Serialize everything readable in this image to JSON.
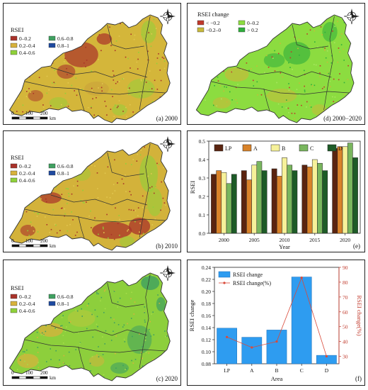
{
  "colors": {
    "c0": "#a9322a",
    "c1": "#d8b23c",
    "c2": "#8fd13a",
    "c3": "#3fa060",
    "c4": "#1e4aa0",
    "ch_neg_big": "#c0392b",
    "ch_neg": "#c8b93a",
    "ch_pos": "#8cdc40",
    "ch_pos_big": "#2fae3c",
    "lp": "#5a2410",
    "a": "#d9832a",
    "b": "#f6f19a",
    "c": "#79b65e",
    "d": "#1d5b27",
    "bar_blue": "#2e9cf0",
    "line_red": "#d94a3a",
    "axis_red": "#c0392b"
  },
  "icons": {
    "north_arrow": "north-arrow-compass-icon"
  },
  "scale": {
    "t0": "0",
    "t1": "100",
    "t2": "200",
    "unit": "km"
  },
  "map_a": {
    "legend_title": "RSEI",
    "legend_items": [
      "0–0.2",
      "0.2–0.4",
      "0.4–0.6",
      "0.6–0.8",
      "0.8–1"
    ],
    "label": "(a) 2000"
  },
  "map_b": {
    "legend_title": "RSEI",
    "legend_items": [
      "0–0.2",
      "0.2–0.4",
      "0.4–0.6",
      "0.6–0.8",
      "0.8–1"
    ],
    "label": "(b) 2010"
  },
  "map_c": {
    "legend_title": "RSEI",
    "legend_items": [
      "0–0.2",
      "0.2–0.4",
      "0.4–0.6",
      "0.6–0.8",
      "0.8–1"
    ],
    "label": "(c) 2020"
  },
  "map_d": {
    "legend_title": "RSEI change",
    "legend_items": [
      "< −0.2",
      "−0.2–0",
      "0–0.2",
      "> 0.2"
    ],
    "label": "(d) 2000−2020"
  },
  "chart_data": [
    {
      "type": "bar",
      "panel": "(e)",
      "xlabel": "Year",
      "ylabel": "RSEI",
      "ylim": [
        0,
        0.5
      ],
      "yticks": [
        "0.0",
        "0.1",
        "0.2",
        "0.3",
        "0.4",
        "0.5"
      ],
      "categories": [
        "2000",
        "2005",
        "2010",
        "2015",
        "2020"
      ],
      "legend_position": "top",
      "series": [
        {
          "name": "LP",
          "values": [
            0.32,
            0.34,
            0.35,
            0.37,
            0.46
          ]
        },
        {
          "name": "A",
          "values": [
            0.34,
            0.29,
            0.31,
            0.36,
            0.47
          ]
        },
        {
          "name": "B",
          "values": [
            0.33,
            0.37,
            0.41,
            0.4,
            0.47
          ]
        },
        {
          "name": "C",
          "values": [
            0.27,
            0.39,
            0.37,
            0.38,
            0.49
          ]
        },
        {
          "name": "D",
          "values": [
            0.32,
            0.34,
            0.34,
            0.34,
            0.41
          ]
        }
      ]
    },
    {
      "type": "bar",
      "panel": "(f)",
      "xlabel": "Area",
      "ylabel": "RSEI change",
      "ylabel_right": "RSEI change(%)",
      "ylim": [
        0.08,
        0.24
      ],
      "ylim_right": [
        25,
        90
      ],
      "yticks": [
        "0.08",
        "0.10",
        "0.12",
        "0.14",
        "0.16",
        "0.18",
        "0.20",
        "0.22",
        "0.24"
      ],
      "yticks_right": [
        "30",
        "40",
        "50",
        "60",
        "70",
        "80",
        "90"
      ],
      "categories": [
        "LP",
        "A",
        "B",
        "C",
        "D"
      ],
      "legend_position": "top-left",
      "series": [
        {
          "name": "RSEI change",
          "kind": "bar",
          "values": [
            0.139,
            0.124,
            0.136,
            0.224,
            0.094
          ]
        },
        {
          "name": "RSEI change(%)",
          "kind": "line",
          "axis": "right",
          "values": [
            43,
            36,
            40,
            83,
            30
          ]
        }
      ]
    }
  ]
}
